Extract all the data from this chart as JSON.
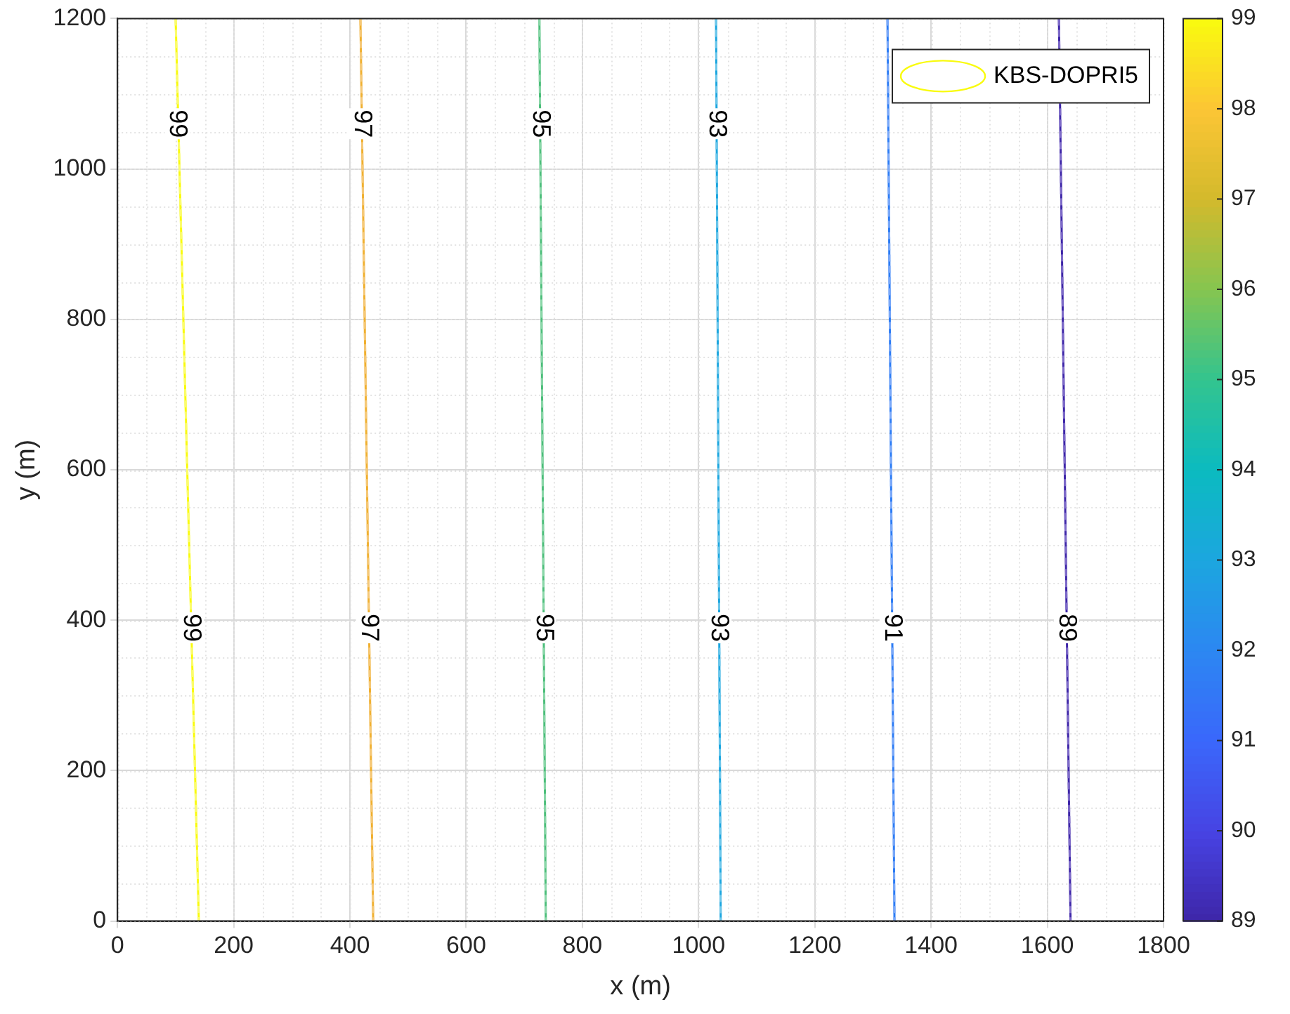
{
  "chart_data": {
    "type": "line",
    "xlabel": "x (m)",
    "ylabel": "y (m)",
    "xlim": [
      0,
      1800
    ],
    "xticks": [
      0,
      200,
      400,
      600,
      800,
      1000,
      1200,
      1400,
      1600,
      1800
    ],
    "ylim": [
      0,
      1200
    ],
    "yticks": [
      0,
      200,
      400,
      600,
      800,
      1000,
      1200
    ],
    "grid": true,
    "legend": "top right",
    "marker": "none",
    "clim": [
      89,
      99
    ],
    "cticks": [
      89,
      90,
      91,
      92,
      93,
      94,
      95,
      96,
      97,
      98,
      99
    ],
    "series": [
      {
        "name": "KBS-DOPRI5",
        "color": "#f9fb0e",
        "line_style": "solid",
        "x": [
          100,
          140
        ],
        "values": [
          1200,
          0
        ]
      },
      {
        "color": "#f0b030",
        "line_style": "solid",
        "x": [
          418,
          440
        ],
        "values": [
          1200,
          0
        ]
      },
      {
        "color": "#4cbe7a",
        "line_style": "solid",
        "x": [
          726,
          737
        ],
        "values": [
          1200,
          0
        ]
      },
      {
        "color": "#1ca6df",
        "line_style": "solid",
        "x": [
          1030,
          1038
        ],
        "values": [
          1200,
          0
        ]
      },
      {
        "color": "#2c7cf5",
        "line_style": "solid",
        "x": [
          1325,
          1337
        ],
        "values": [
          1200,
          0
        ]
      },
      {
        "color": "#3e26a8",
        "line_style": "solid",
        "x": [
          1620,
          1640
        ],
        "values": [
          1200,
          0
        ]
      },
      {
        "color": "#fbfc6e",
        "line_style": "dashed",
        "x": [
          100,
          140
        ],
        "values": [
          1200,
          0
        ]
      },
      {
        "color": "#f5c878",
        "line_style": "dashed",
        "x": [
          418,
          440
        ],
        "values": [
          1200,
          0
        ]
      },
      {
        "color": "#8ad6a8",
        "line_style": "dashed",
        "x": [
          726,
          737
        ],
        "values": [
          1200,
          0
        ]
      },
      {
        "color": "#6cc6ea",
        "line_style": "dashed",
        "x": [
          1030,
          1038
        ],
        "values": [
          1200,
          0
        ]
      },
      {
        "color": "#7aa8f8",
        "line_style": "dashed",
        "x": [
          1325,
          1337
        ],
        "values": [
          1200,
          0
        ]
      },
      {
        "color": "#7d6ac8",
        "line_style": "dashed",
        "x": [
          1620,
          1640
        ],
        "values": [
          1200,
          0
        ]
      }
    ],
    "annotations": [
      {
        "text": "99",
        "x": 103,
        "y": 1060
      },
      {
        "text": "97",
        "x": 420,
        "y": 1060
      },
      {
        "text": "95",
        "x": 727,
        "y": 1060
      },
      {
        "text": "93",
        "x": 1031,
        "y": 1060
      },
      {
        "text": "99",
        "x": 127,
        "y": 390
      },
      {
        "text": "97",
        "x": 432,
        "y": 390
      },
      {
        "text": "95",
        "x": 733,
        "y": 390
      },
      {
        "text": "93",
        "x": 1035,
        "y": 390
      },
      {
        "text": "91",
        "x": 1333,
        "y": 390
      },
      {
        "text": "89",
        "x": 1633,
        "y": 390
      }
    ]
  }
}
